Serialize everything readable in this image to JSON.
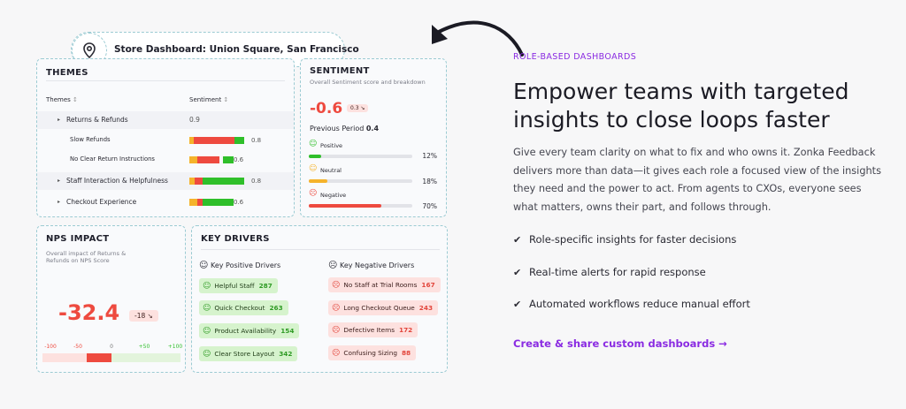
{
  "store": {
    "title": "Store Dashboard: Union Square, San Francisco"
  },
  "themes": {
    "title": "THEMES",
    "col_themes": "Themes",
    "col_sentiment": "Sentiment",
    "rows": [
      {
        "label": "Returns & Refunds",
        "score": "0.9",
        "type": "parent"
      },
      {
        "label": "Slow Refunds",
        "bar": [
          0.1,
          0.75,
          0.15
        ],
        "value": "0.8",
        "type": "child"
      },
      {
        "label": "No Clear Return Instructions",
        "bar": [
          0.15,
          0.55,
          0.3
        ],
        "value": "0.6",
        "type": "child"
      },
      {
        "label": "Staff Interaction & Helpfulness",
        "bar": [
          0.12,
          0.25,
          0.63
        ],
        "value": "0.8",
        "type": "parent"
      },
      {
        "label": "Checkout Experience",
        "bar": [
          0.15,
          0.15,
          0.7
        ],
        "value": "0.6",
        "type": "parent"
      }
    ]
  },
  "sentiment": {
    "title": "SENTIMENT",
    "subtitle": "Overall Sentiment score and breakdown",
    "score": "-0.6",
    "delta": "0.3 ↘",
    "previous_label": "Previous Period",
    "previous_value": "0.4",
    "rows": [
      {
        "label": "Positive",
        "pct_text": "12%",
        "pct": 0.12,
        "color": "#2fbf2a",
        "face": "☺"
      },
      {
        "label": "Neutral",
        "pct_text": "18%",
        "pct": 0.18,
        "color": "#f5b32b",
        "face": "☺"
      },
      {
        "label": "Negative",
        "pct_text": "70%",
        "pct": 0.7,
        "color": "#ee4a3f",
        "face": "☹"
      }
    ]
  },
  "nps": {
    "title": "NPS IMPACT",
    "subtitle_1": "Overall impact of Returns &",
    "subtitle_2": "Refunds on NPS Score",
    "score": "-32.4",
    "delta": "-18 ↘",
    "ticks": [
      "-100",
      "-50",
      "0",
      "+50",
      "+100"
    ],
    "value": -32.4
  },
  "drivers": {
    "title": "KEY DRIVERS",
    "positive_heading": "Key Positive Drivers",
    "negative_heading": "Key Negative Drivers",
    "positive": [
      {
        "label": "Helpful Staff",
        "count": "287"
      },
      {
        "label": "Quick Checkout",
        "count": "263"
      },
      {
        "label": "Product Availability",
        "count": "154"
      },
      {
        "label": "Clear Store Layout",
        "count": "342"
      }
    ],
    "negative": [
      {
        "label": "No Staff at Trial Rooms",
        "count": "167"
      },
      {
        "label": "Long Checkout Queue",
        "count": "243"
      },
      {
        "label": "Defective Items",
        "count": "172"
      },
      {
        "label": "Confusing Sizing",
        "count": "88"
      }
    ]
  },
  "marketing": {
    "eyebrow": "ROLE-BASED DASHBOARDS",
    "headline": "Empower teams with targeted insights to close loops faster",
    "body": "Give every team clarity on what to fix and who owns it. Zonka Feedback delivers more than data—it gives each role a focused view of the insights they need and the power to act. From agents to CXOs, everyone sees what matters, owns their part, and follows through.",
    "bullets": [
      "Role-specific insights for faster decisions",
      "Real-time alerts for rapid response",
      "Automated workflows reduce manual effort"
    ],
    "cta": "Create & share custom dashboards →"
  },
  "colors": {
    "accent": "#8a2be2",
    "red": "#ee4a3f",
    "green": "#2fbf2a",
    "amber": "#f5b32b"
  }
}
